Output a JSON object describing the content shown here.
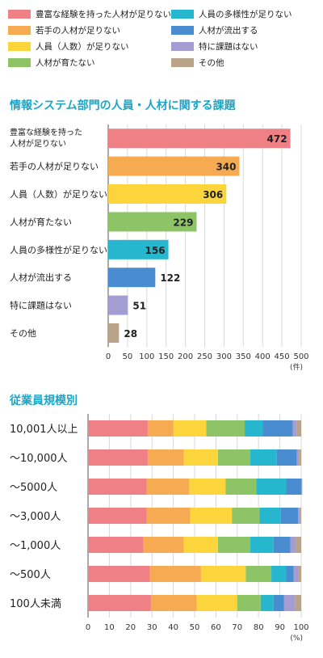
{
  "colors": {
    "title": "#1aa6c8",
    "c_experience": "#ee8086",
    "c_young": "#f6ab52",
    "c_number": "#fcd53c",
    "c_grow": "#8dc566",
    "c_diversity": "#26b7cf",
    "c_outflow": "#4a8cd0",
    "c_none": "#a39dd2",
    "c_other": "#b9a48a"
  },
  "legend": [
    {
      "label": "豊富な経験を持った人材が足りない",
      "color": "#ee8086"
    },
    {
      "label": "若手の人材が足りない",
      "color": "#f6ab52"
    },
    {
      "label": "人員（人数）が足りない",
      "color": "#fcd53c"
    },
    {
      "label": "人材が育たない",
      "color": "#8dc566"
    },
    {
      "label": "人員の多様性が足りない",
      "color": "#26b7cf"
    },
    {
      "label": "人材が流出する",
      "color": "#4a8cd0"
    },
    {
      "label": "特に課題はない",
      "color": "#a39dd2"
    },
    {
      "label": "その他",
      "color": "#b9a48a"
    }
  ],
  "chart_data": [
    {
      "type": "bar",
      "orientation": "horizontal",
      "title": "情報システム部門の人員・人材に関する課題",
      "categories": [
        [
          "豊富な経験を持った",
          "人材が足りない"
        ],
        [
          "若手の人材が足りない"
        ],
        [
          "人員（人数）が足りない"
        ],
        [
          "人材が育たない"
        ],
        [
          "人員の多様性が足りない"
        ],
        [
          "人材が流出する"
        ],
        [
          "特に課題はない"
        ],
        [
          "その他"
        ]
      ],
      "values": [
        472,
        340,
        306,
        229,
        156,
        122,
        51,
        28
      ],
      "colors": [
        "#ee8086",
        "#f6ab52",
        "#fcd53c",
        "#8dc566",
        "#26b7cf",
        "#4a8cd0",
        "#a39dd2",
        "#b9a48a"
      ],
      "xlim": [
        0,
        500
      ],
      "xticks": [
        "0",
        "50",
        "100",
        "150",
        "200",
        "250",
        "300",
        "350",
        "400",
        "450",
        "500"
      ],
      "xunit": "(件)",
      "grid": true
    },
    {
      "type": "bar",
      "orientation": "horizontal",
      "stacked": true,
      "title": "従業員規模別",
      "categories": [
        "10,001人以上",
        "〜10,000人",
        "〜5000人",
        "〜3,000人",
        "〜1,000人",
        "〜500人",
        "100人未満"
      ],
      "series": [
        {
          "name": "豊富な経験を持った人材が足りない",
          "color": "#ee8086",
          "values": [
            28,
            28,
            27.5,
            27.5,
            26,
            29,
            29.5
          ]
        },
        {
          "name": "若手の人材が足りない",
          "color": "#f6ab52",
          "values": [
            12,
            17,
            20,
            20.5,
            19,
            24,
            21.5
          ]
        },
        {
          "name": "人員（人数）が足りない",
          "color": "#fcd53c",
          "values": [
            15.5,
            16,
            17,
            19.5,
            16,
            21,
            19
          ]
        },
        {
          "name": "人材が育たない",
          "color": "#8dc566",
          "values": [
            18,
            15,
            14.5,
            13,
            15,
            12,
            11
          ]
        },
        {
          "name": "人員の多様性が足りない",
          "color": "#26b7cf",
          "values": [
            8.5,
            12.5,
            14,
            10,
            11,
            7,
            6
          ]
        },
        {
          "name": "人材が流出する",
          "color": "#4a8cd0",
          "values": [
            14,
            9.5,
            7,
            8,
            8,
            3.5,
            5
          ]
        },
        {
          "name": "特に課題はない",
          "color": "#a39dd2",
          "values": [
            2,
            1,
            0.5,
            1,
            2.5,
            2,
            5
          ]
        },
        {
          "name": "その他",
          "color": "#b9a48a",
          "values": [
            2,
            1,
            0,
            0.5,
            2.5,
            1.5,
            3
          ]
        }
      ],
      "xlim": [
        0,
        100
      ],
      "xticks": [
        "0",
        "10",
        "20",
        "30",
        "40",
        "50",
        "60",
        "70",
        "80",
        "90",
        "100"
      ],
      "xunit": "(%)",
      "grid": true
    }
  ]
}
